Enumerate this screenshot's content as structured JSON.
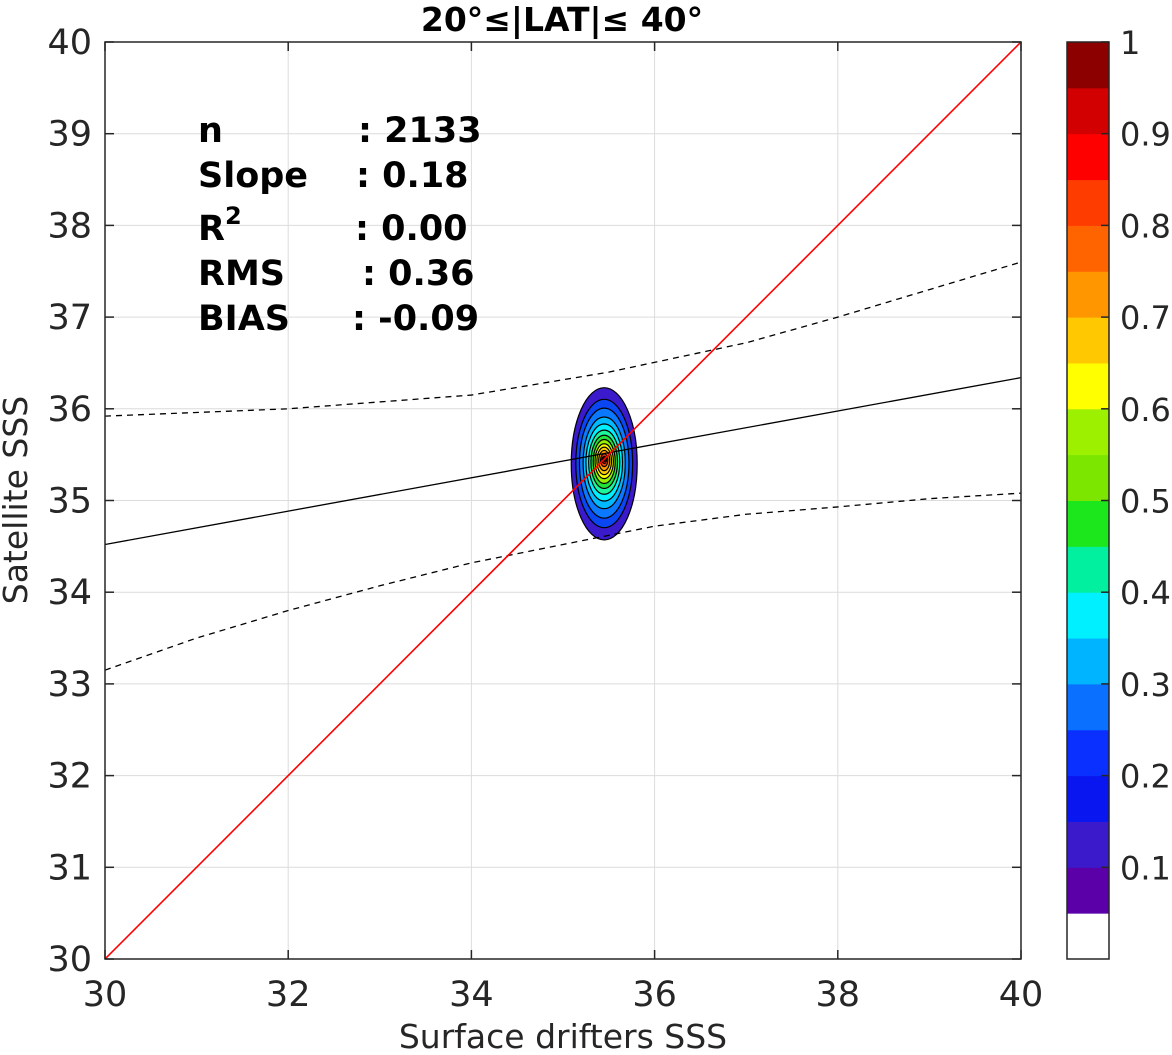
{
  "chart_data": {
    "type": "contour",
    "title": "20°≤|LAT|≤ 40°",
    "xlabel": "Surface drifters SSS",
    "ylabel": "Satellite SSS",
    "xlim": [
      30,
      40
    ],
    "ylim": [
      30,
      40
    ],
    "xticks": [
      "30",
      "32",
      "34",
      "36",
      "38",
      "40"
    ],
    "yticks": [
      "30",
      "31",
      "32",
      "33",
      "34",
      "35",
      "36",
      "37",
      "38",
      "39",
      "40"
    ],
    "grid": true,
    "stats": [
      {
        "label": "n",
        "value": ": 2133"
      },
      {
        "label": "Slope",
        "value": ": 0.18"
      },
      {
        "label": "R",
        "sup": "2",
        "value": ": 0.00"
      },
      {
        "label": "RMS",
        "value": ": 0.36"
      },
      {
        "label": "BIAS",
        "value": ": -0.09"
      }
    ],
    "identity_line": {
      "color": "#ff0000",
      "x": [
        30,
        40
      ],
      "y": [
        30,
        40
      ]
    },
    "regression_line": {
      "color": "#000000",
      "x": [
        30,
        40
      ],
      "y": [
        34.52,
        36.34
      ]
    },
    "confidence_upper": {
      "x": [
        30,
        32,
        34,
        35.5,
        37,
        38,
        39,
        40
      ],
      "y": [
        35.92,
        36.0,
        36.15,
        36.4,
        36.72,
        37.0,
        37.3,
        37.6
      ]
    },
    "confidence_lower": {
      "x": [
        30,
        31,
        32,
        33,
        34,
        35,
        35.5,
        36,
        37,
        38,
        39,
        40
      ],
      "y": [
        33.15,
        33.5,
        33.8,
        34.07,
        34.32,
        34.52,
        34.62,
        34.72,
        34.85,
        34.93,
        35.02,
        35.08
      ]
    },
    "density_center": [
      35.45,
      35.45
    ],
    "contour_levels": [
      {
        "level": 0.05,
        "color": "#3b1acb",
        "rx": 0.36,
        "ry": 0.83
      },
      {
        "level": 0.15,
        "color": "#0a46f2",
        "rx": 0.31,
        "ry": 0.7
      },
      {
        "level": 0.2,
        "color": "#0a78ff",
        "rx": 0.27,
        "ry": 0.6
      },
      {
        "level": 0.3,
        "color": "#00b9ff",
        "rx": 0.23,
        "ry": 0.5
      },
      {
        "level": 0.4,
        "color": "#00f0ff",
        "rx": 0.2,
        "ry": 0.42
      },
      {
        "level": 0.45,
        "color": "#1cf59b",
        "rx": 0.17,
        "ry": 0.35
      },
      {
        "level": 0.5,
        "color": "#22e33a",
        "rx": 0.145,
        "ry": 0.29
      },
      {
        "level": 0.55,
        "color": "#97f000",
        "rx": 0.12,
        "ry": 0.24
      },
      {
        "level": 0.65,
        "color": "#ffff00",
        "rx": 0.1,
        "ry": 0.19
      },
      {
        "level": 0.7,
        "color": "#ffcc00",
        "rx": 0.08,
        "ry": 0.15
      },
      {
        "level": 0.75,
        "color": "#ff9900",
        "rx": 0.06,
        "ry": 0.11
      },
      {
        "level": 0.85,
        "color": "#ff4400",
        "rx": 0.04,
        "ry": 0.07
      },
      {
        "level": 0.9,
        "color": "#e00000",
        "rx": 0.025,
        "ry": 0.04
      },
      {
        "level": 1.0,
        "color": "#8b0000",
        "rx": 0.012,
        "ry": 0.02
      }
    ],
    "colorbar": {
      "ticks": [
        "0.1",
        "0.2",
        "0.3",
        "0.4",
        "0.5",
        "0.6",
        "0.7",
        "0.8",
        "0.9",
        "1"
      ],
      "colors": [
        "#ffffff",
        "#5b00a8",
        "#3b1acb",
        "#0a16f0",
        "#0a30ff",
        "#0a70ff",
        "#00b4ff",
        "#00f0ff",
        "#00f0a0",
        "#1ce61c",
        "#7ce600",
        "#9cf000",
        "#ffff00",
        "#ffc800",
        "#ff9600",
        "#ff6400",
        "#ff3c00",
        "#ff0000",
        "#d20000",
        "#8c0000"
      ]
    }
  }
}
